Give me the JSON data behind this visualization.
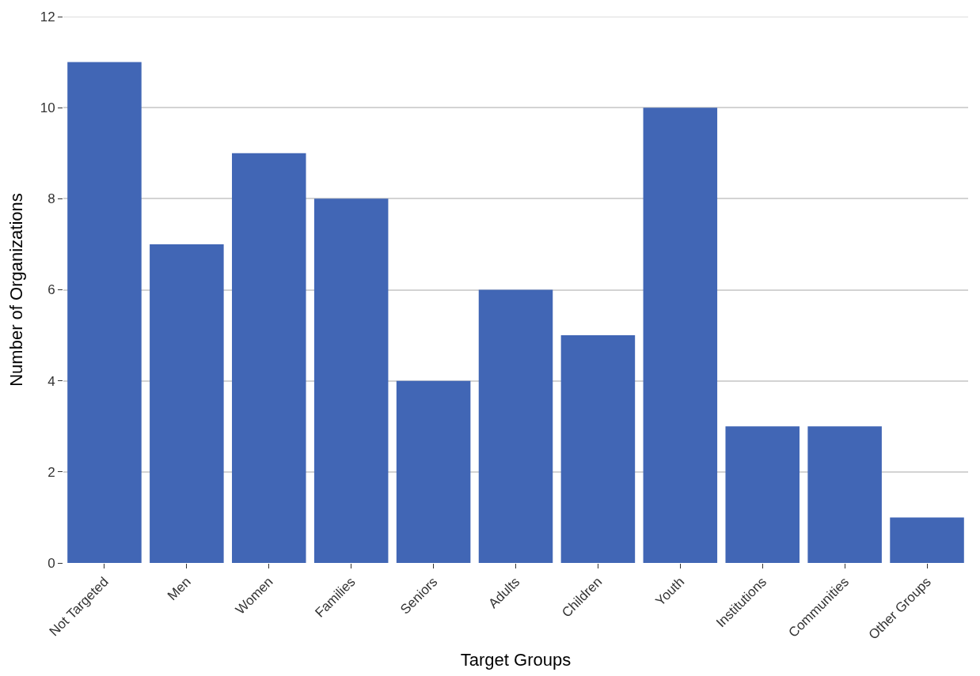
{
  "chart_data": {
    "type": "bar",
    "xlabel": "Target Groups",
    "ylabel": "Number of Organizations",
    "categories": [
      "Not Targeted",
      "Men",
      "Women",
      "Families",
      "Seniors",
      "Adults",
      "Children",
      "Youth",
      "Institutions",
      "Communities",
      "Other Groups"
    ],
    "values": [
      11,
      7,
      9,
      8,
      4,
      6,
      5,
      10,
      3,
      3,
      1
    ],
    "color": "#4166b5",
    "ylim": [
      0,
      12
    ],
    "yticks": [
      0,
      2,
      4,
      6,
      8,
      10,
      12
    ],
    "grid": "y"
  }
}
